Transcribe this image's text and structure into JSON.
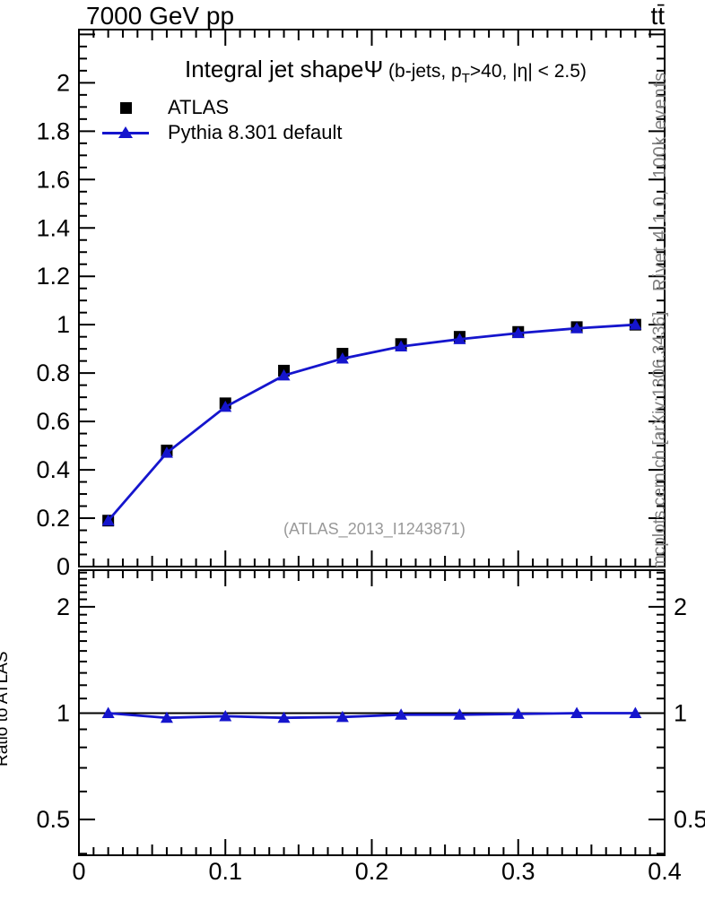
{
  "header": {
    "left": "7000 GeV pp",
    "right": "tt̄"
  },
  "title": {
    "main": "Integral jet shape",
    "symbol": "Ψ",
    "detail_pre": " (b-jets, p",
    "detail_sub": "T",
    "detail_post": ">40, |η| < 2.5)"
  },
  "legend": {
    "items": [
      {
        "label": "ATLAS",
        "marker": "square",
        "color": "#000000"
      },
      {
        "label": "Pythia 8.301 default",
        "marker": "triangle-line",
        "color": "#1515cd"
      }
    ]
  },
  "watermark": "(ATLAS_2013_I1243871)",
  "side_notes": {
    "top": "Rivet 4.1.0,  100k events",
    "bottom": "mcplots.cern.ch [arXiv:1306.3436]"
  },
  "ratio_panel": {
    "ylabel": "Ratio to ATLAS"
  },
  "colors": {
    "data": "#000000",
    "mc": "#1515cd",
    "watermark": "#999999",
    "side_note": "#808080"
  },
  "chart_data": {
    "type": "line",
    "title": "Integral jet shape Ψ (b-jets, pT>40, |η| < 2.5)",
    "x": [
      0.02,
      0.06,
      0.1,
      0.14,
      0.18,
      0.22,
      0.26,
      0.3,
      0.34,
      0.38
    ],
    "series": [
      {
        "name": "ATLAS",
        "marker": "square",
        "color": "#000000",
        "values": [
          0.19,
          0.48,
          0.675,
          0.81,
          0.88,
          0.92,
          0.95,
          0.97,
          0.99,
          1.0
        ]
      },
      {
        "name": "Pythia 8.301 default",
        "marker": "triangle",
        "color": "#1515cd",
        "values": [
          0.19,
          0.47,
          0.66,
          0.79,
          0.86,
          0.91,
          0.94,
          0.965,
          0.985,
          1.0
        ]
      }
    ],
    "ratio": {
      "label": "Ratio to ATLAS",
      "series": "Pythia 8.301 default",
      "reference": 1.0,
      "values": [
        1.0,
        0.97,
        0.98,
        0.97,
        0.975,
        0.99,
        0.99,
        0.995,
        1.0,
        1.0
      ]
    },
    "axes": {
      "x": {
        "lim": [
          0,
          0.4
        ],
        "majors": [
          {
            "v": 0.0,
            "label": "0"
          },
          {
            "v": 0.1,
            "label": "0.1"
          },
          {
            "v": 0.2,
            "label": "0.2"
          },
          {
            "v": 0.3,
            "label": "0.3"
          },
          {
            "v": 0.4,
            "label": "0.4"
          }
        ],
        "medium_step": 0.05,
        "minor_step": 0.01
      },
      "y_main": {
        "scale": "linear",
        "lim": [
          0,
          2.22
        ],
        "majors": [
          {
            "v": 0.0,
            "label": "0"
          },
          {
            "v": 0.2,
            "label": "0.2"
          },
          {
            "v": 0.4,
            "label": "0.4"
          },
          {
            "v": 0.6,
            "label": "0.6"
          },
          {
            "v": 0.8,
            "label": "0.8"
          },
          {
            "v": 1.0,
            "label": "1"
          },
          {
            "v": 1.2,
            "label": "1.2"
          },
          {
            "v": 1.4,
            "label": "1.4"
          },
          {
            "v": 1.6,
            "label": "1.6"
          },
          {
            "v": 1.8,
            "label": "1.8"
          },
          {
            "v": 2.0,
            "label": "2"
          },
          {
            "v": 2.2,
            "label": ""
          }
        ],
        "minor_step": 0.05
      },
      "y_ratio": {
        "scale": "log",
        "lim": [
          0.396,
          2.54
        ],
        "majors": [
          {
            "v": 2.0,
            "label": "2"
          },
          {
            "v": 1.0,
            "label": "1"
          },
          {
            "v": 0.5,
            "label": "0.5"
          }
        ],
        "minors": [
          0.4,
          0.6,
          0.7,
          0.8,
          0.9,
          1.1,
          1.2,
          1.3,
          1.4,
          1.5,
          1.6,
          1.7,
          1.8,
          1.9,
          2.1,
          2.2,
          2.3,
          2.4,
          2.5
        ]
      }
    }
  }
}
